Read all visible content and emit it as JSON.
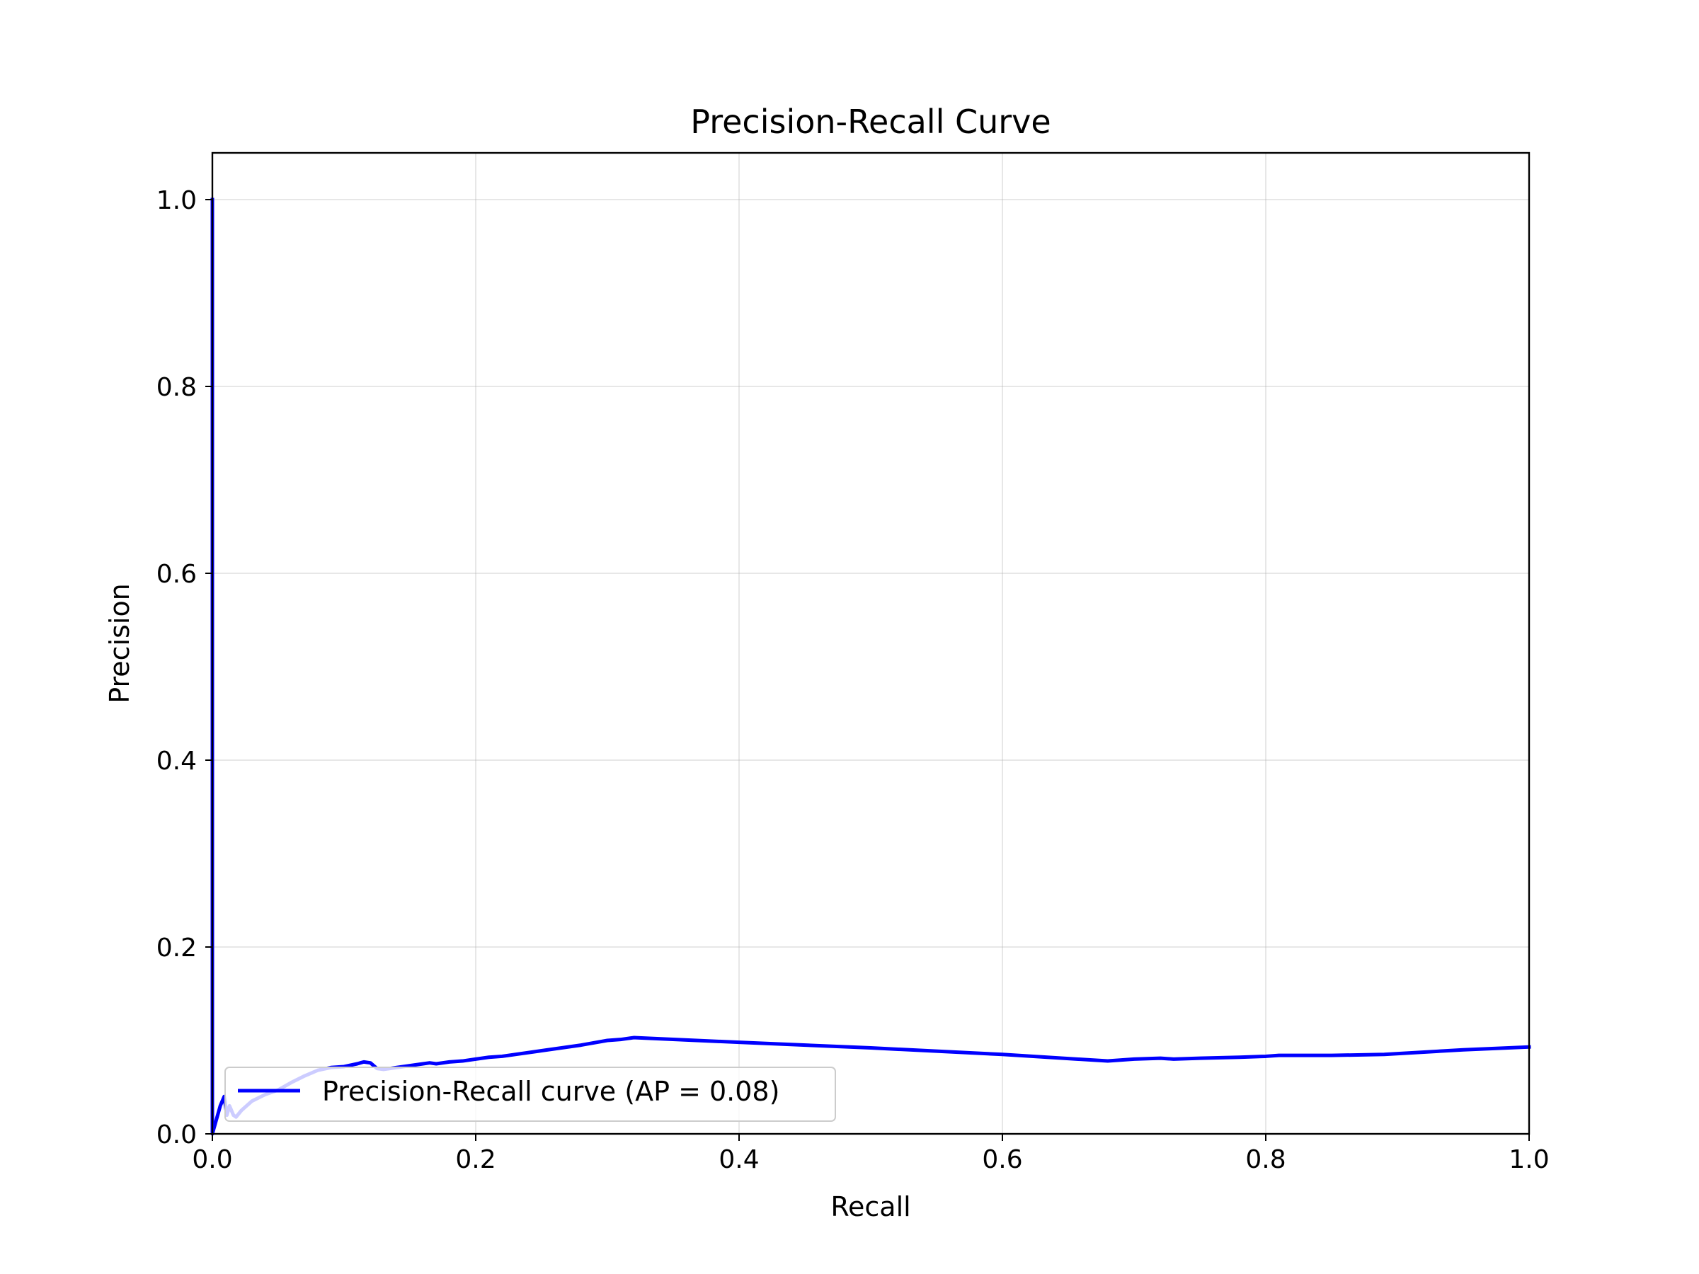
{
  "chart_data": {
    "type": "line",
    "title": "Precision-Recall Curve",
    "xlabel": "Recall",
    "ylabel": "Precision",
    "xlim": [
      0.0,
      1.0
    ],
    "ylim": [
      0.0,
      1.05
    ],
    "xticks": [
      "0.0",
      "0.2",
      "0.4",
      "0.6",
      "0.8",
      "1.0"
    ],
    "yticks": [
      "0.0",
      "0.2",
      "0.4",
      "0.6",
      "0.8",
      "1.0"
    ],
    "grid": true,
    "legend_position": "lower-left",
    "series": [
      {
        "name": "Precision-Recall curve (AP = 0.08)",
        "color": "#0000ff",
        "x": [
          0.0,
          0.0,
          0.0,
          0.003,
          0.006,
          0.009,
          0.011,
          0.013,
          0.016,
          0.018,
          0.022,
          0.03,
          0.04,
          0.05,
          0.06,
          0.07,
          0.08,
          0.09,
          0.1,
          0.11,
          0.115,
          0.12,
          0.125,
          0.13,
          0.14,
          0.15,
          0.16,
          0.165,
          0.17,
          0.18,
          0.19,
          0.2,
          0.21,
          0.22,
          0.25,
          0.28,
          0.3,
          0.31,
          0.32,
          0.4,
          0.5,
          0.6,
          0.68,
          0.7,
          0.72,
          0.73,
          0.75,
          0.78,
          0.8,
          0.81,
          0.85,
          0.89,
          0.95,
          1.0
        ],
        "y": [
          1.0,
          0.0,
          0.0,
          0.015,
          0.03,
          0.04,
          0.02,
          0.03,
          0.02,
          0.018,
          0.025,
          0.035,
          0.042,
          0.047,
          0.055,
          0.062,
          0.068,
          0.071,
          0.072,
          0.075,
          0.077,
          0.076,
          0.07,
          0.069,
          0.071,
          0.073,
          0.075,
          0.076,
          0.075,
          0.077,
          0.078,
          0.08,
          0.082,
          0.083,
          0.089,
          0.095,
          0.1,
          0.101,
          0.103,
          0.098,
          0.092,
          0.085,
          0.078,
          0.08,
          0.081,
          0.08,
          0.081,
          0.082,
          0.083,
          0.084,
          0.084,
          0.085,
          0.09,
          0.093
        ]
      }
    ]
  }
}
